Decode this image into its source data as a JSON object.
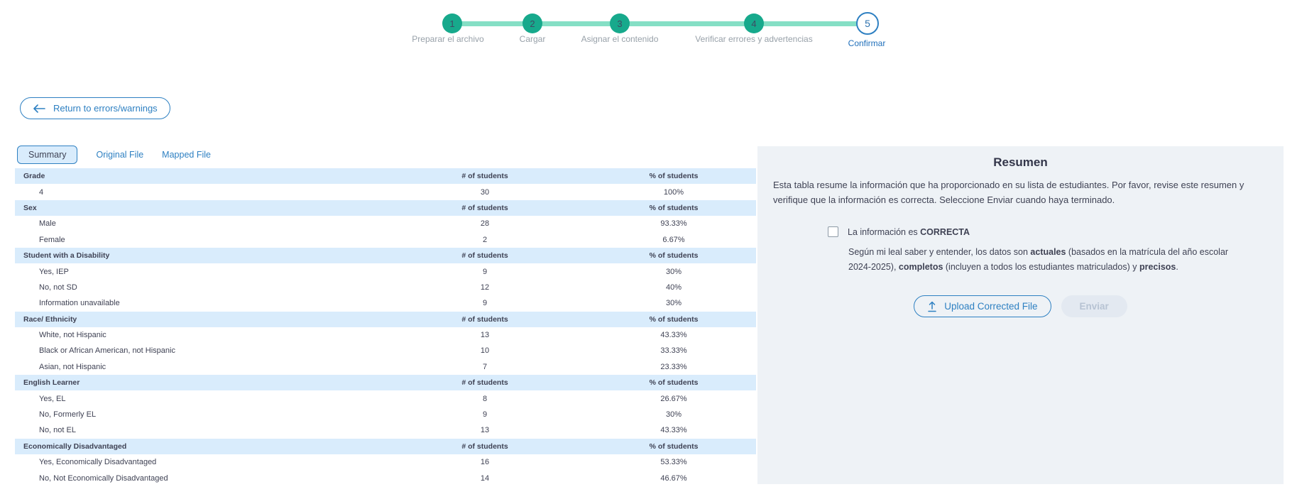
{
  "stepper": {
    "steps": [
      {
        "number": "1",
        "label": "Preparar el archivo",
        "state": "done"
      },
      {
        "number": "2",
        "label": "Cargar",
        "state": "done"
      },
      {
        "number": "3",
        "label": "Asignar el contenido",
        "state": "done"
      },
      {
        "number": "4",
        "label": "Verificar errores y advertencias",
        "state": "done"
      },
      {
        "number": "5",
        "label": "Confirmar",
        "state": "current"
      }
    ]
  },
  "toolbar": {
    "return_button_label": "Return to errors/warnings",
    "back_arrow_icon": "left-arrow"
  },
  "tabs": [
    {
      "label": "Summary",
      "active": true
    },
    {
      "label": "Original File",
      "active": false
    },
    {
      "label": "Mapped File",
      "active": false
    }
  ],
  "table": {
    "col_headers": [
      "# of students",
      "% of students"
    ],
    "sections": [
      {
        "name": "Grade",
        "rows": [
          [
            "4",
            "30",
            "100%"
          ]
        ]
      },
      {
        "name": "Sex",
        "rows": [
          [
            "Male",
            "28",
            "93.33%"
          ],
          [
            "Female",
            "2",
            "6.67%"
          ]
        ]
      },
      {
        "name": "Student with a Disability",
        "rows": [
          [
            "Yes, IEP",
            "9",
            "30%"
          ],
          [
            "No, not SD",
            "12",
            "40%"
          ],
          [
            "Information unavailable",
            "9",
            "30%"
          ]
        ]
      },
      {
        "name": "Race/ Ethnicity",
        "rows": [
          [
            "White, not Hispanic",
            "13",
            "43.33%"
          ],
          [
            "Black or African American, not Hispanic",
            "10",
            "33.33%"
          ],
          [
            "Asian, not Hispanic",
            "7",
            "23.33%"
          ]
        ]
      },
      {
        "name": "English Learner",
        "rows": [
          [
            "Yes, EL",
            "8",
            "26.67%"
          ],
          [
            "No, Formerly EL",
            "9",
            "30%"
          ],
          [
            "No, not EL",
            "13",
            "43.33%"
          ]
        ]
      },
      {
        "name": "Economically Disadvantaged",
        "rows": [
          [
            "Yes, Economically Disadvantaged",
            "16",
            "53.33%"
          ],
          [
            "No, Not Economically Disadvantaged",
            "14",
            "46.67%"
          ]
        ]
      }
    ]
  },
  "panel": {
    "title": "Resumen",
    "intro": "Esta tabla resume la información que ha proporcionado en su lista de estudiantes. Por favor, revise este resumen y verifique que la información es correcta. Seleccione Enviar cuando haya terminado.",
    "checkbox": {
      "checked": false,
      "prefix": "La información es ",
      "bold": "CORRECTA"
    },
    "declaration_parts": [
      {
        "text": "Según mi leal saber y entender, los datos son ",
        "bold": false
      },
      {
        "text": "actuales",
        "bold": true
      },
      {
        "text": " (basados en la matrícula del año escolar 2024-2025), ",
        "bold": false
      },
      {
        "text": "completos",
        "bold": true
      },
      {
        "text": " (incluyen a todos los estudiantes matriculados) y ",
        "bold": false
      },
      {
        "text": "precisos",
        "bold": true
      },
      {
        "text": ".",
        "bold": false
      }
    ],
    "upload_button_label": "Upload Corrected File",
    "upload_icon": "upload-arrow",
    "submit_button_label": "Enviar",
    "submit_enabled": false
  },
  "colors": {
    "accent_teal": "#17a98c",
    "accent_teal_light": "#85dfc5",
    "accent_blue": "#2e80c2",
    "section_row_bg": "#d9ecfc",
    "panel_bg": "#eef2f6",
    "disabled_bg": "#e3e9f1",
    "disabled_text": "#b7c3d3",
    "step_label_gray": "#98a1a9"
  }
}
